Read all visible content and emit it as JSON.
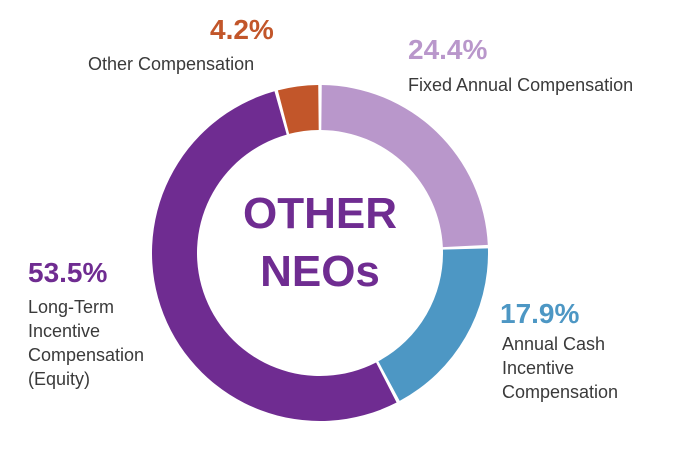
{
  "chart_data": {
    "type": "pie",
    "variant": "donut",
    "center_label": [
      "OTHER",
      "NEOs"
    ],
    "slices": [
      {
        "value": 24.4,
        "value_label": "24.4%",
        "label_lines": [
          "Fixed Annual Compensation"
        ],
        "color": "#b997cb"
      },
      {
        "value": 17.9,
        "value_label": "17.9%",
        "label_lines": [
          "Annual Cash",
          "Incentive",
          "Compensation"
        ],
        "color": "#4d97c4"
      },
      {
        "value": 53.5,
        "value_label": "53.5%",
        "label_lines": [
          "Long-Term",
          "Incentive",
          "Compensation",
          "(Equity)"
        ],
        "color": "#6f2c91"
      },
      {
        "value": 4.2,
        "value_label": "4.2%",
        "label_lines": [
          "Other Compensation"
        ],
        "color": "#c2562a"
      }
    ]
  }
}
